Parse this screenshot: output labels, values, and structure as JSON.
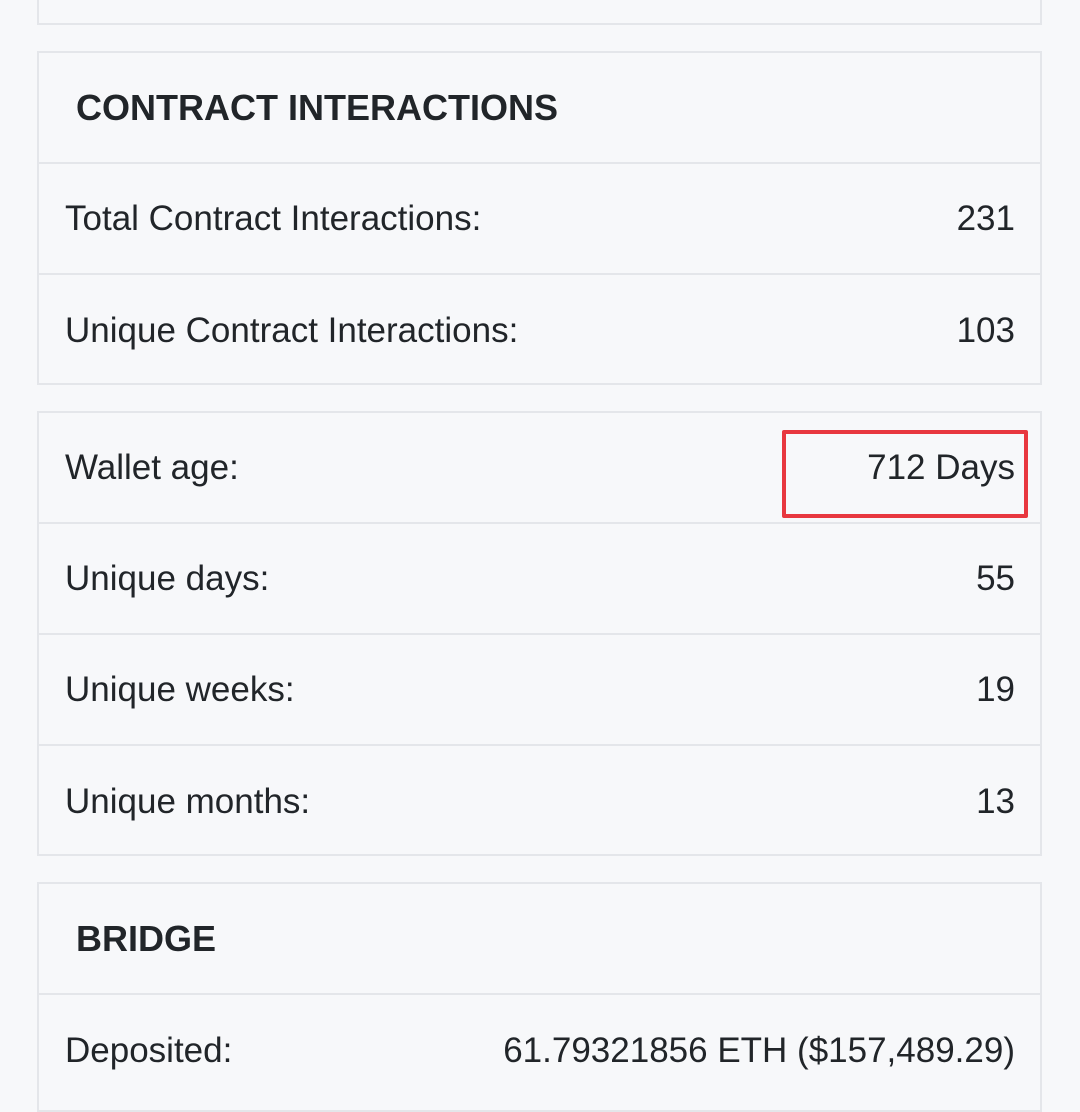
{
  "contract_section": {
    "title": "CONTRACT INTERACTIONS",
    "rows": [
      {
        "label": "Total Contract Interactions:",
        "value": "231"
      },
      {
        "label": "Unique Contract Interactions:",
        "value": "103"
      }
    ]
  },
  "activity_section": {
    "rows": [
      {
        "label": "Wallet age:",
        "value": "712 Days"
      },
      {
        "label": "Unique days:",
        "value": "55"
      },
      {
        "label": "Unique weeks:",
        "value": "19"
      },
      {
        "label": "Unique months:",
        "value": "13"
      }
    ]
  },
  "bridge_section": {
    "title": "BRIDGE",
    "rows": [
      {
        "label": "Deposited:",
        "value": "61.79321856 ETH ($157,489.29)"
      }
    ]
  },
  "highlight_color": "#e8373f"
}
